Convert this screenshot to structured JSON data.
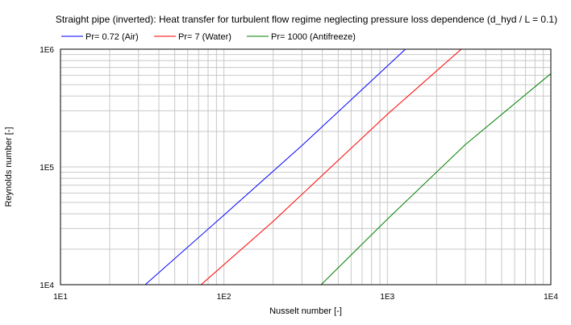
{
  "chart_data": {
    "type": "line",
    "title": "Straight pipe (inverted): Heat transfer for turbulent flow regime neglecting pressure loss dependence (d_hyd / L = 0.1)",
    "xlabel": "Nusselt number [-]",
    "ylabel": "Reynolds number [-]",
    "xscale": "log",
    "yscale": "log",
    "xlim": [
      10,
      10000
    ],
    "ylim": [
      10000,
      1000000
    ],
    "x_ticks": [
      10,
      100,
      1000,
      10000
    ],
    "x_tick_labels": [
      "1E1",
      "1E2",
      "1E3",
      "1E4"
    ],
    "y_ticks": [
      10000,
      100000,
      1000000
    ],
    "y_tick_labels": [
      "1E4",
      "1E5",
      "1E6"
    ],
    "grid": true,
    "legend_position": "top",
    "series": [
      {
        "name": "Pr= 0.72 (Air)",
        "color": "#0000ff",
        "x": [
          33.0,
          100,
          300,
          1290
        ],
        "y": [
          10000,
          39000,
          152000,
          1000000
        ]
      },
      {
        "name": "Pr= 7 (Water)",
        "color": "#ff0000",
        "x": [
          72.5,
          200,
          1000,
          2830
        ],
        "y": [
          10000,
          34500,
          280000,
          1000000
        ]
      },
      {
        "name": "Pr= 1000 (Antifreeze)",
        "color": "#008000",
        "x": [
          393,
          1000,
          3000,
          10000
        ],
        "y": [
          10000,
          36000,
          155000,
          620000
        ]
      }
    ]
  }
}
